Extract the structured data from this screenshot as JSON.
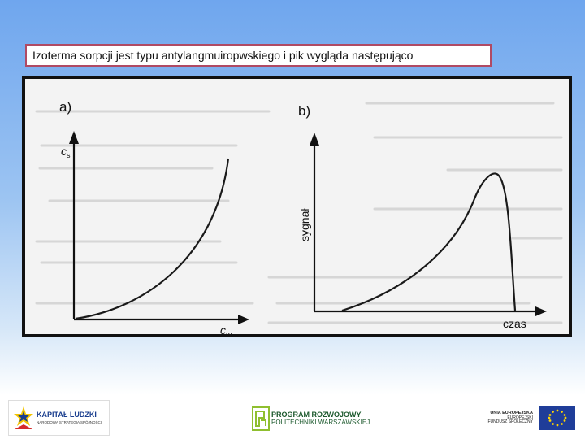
{
  "slide": {
    "title": "Izoterma sorpcji jest typu antylangmuiropwskiego i pik wygląda następująco"
  },
  "figure": {
    "panel_a": {
      "label": "a)",
      "y_axis": "c",
      "y_axis_sub": "s",
      "x_axis": "c",
      "x_axis_sub": "m"
    },
    "panel_b": {
      "label": "b)",
      "y_axis": "sygnał",
      "x_axis": "czas"
    },
    "curve_color": "#1a1a1a"
  },
  "footer": {
    "kapital_ludzki": {
      "title": "KAPITAŁ LUDZKI",
      "subtitle": "NARODOWA STRATEGIA SPÓJNOŚCI",
      "icon": "star-logo-icon"
    },
    "program": {
      "line1": "PROGRAM ROZWOJOWY",
      "line2": "POLITECHNIKI WARSZAWSKIEJ",
      "icon": "pw-logo-icon"
    },
    "eu": {
      "line1": "UNIA EUROPEJSKA",
      "line2": "EUROPEJSKI",
      "line3": "FUNDUSZ SPOŁECZNY",
      "icon": "eu-flag-icon"
    }
  }
}
